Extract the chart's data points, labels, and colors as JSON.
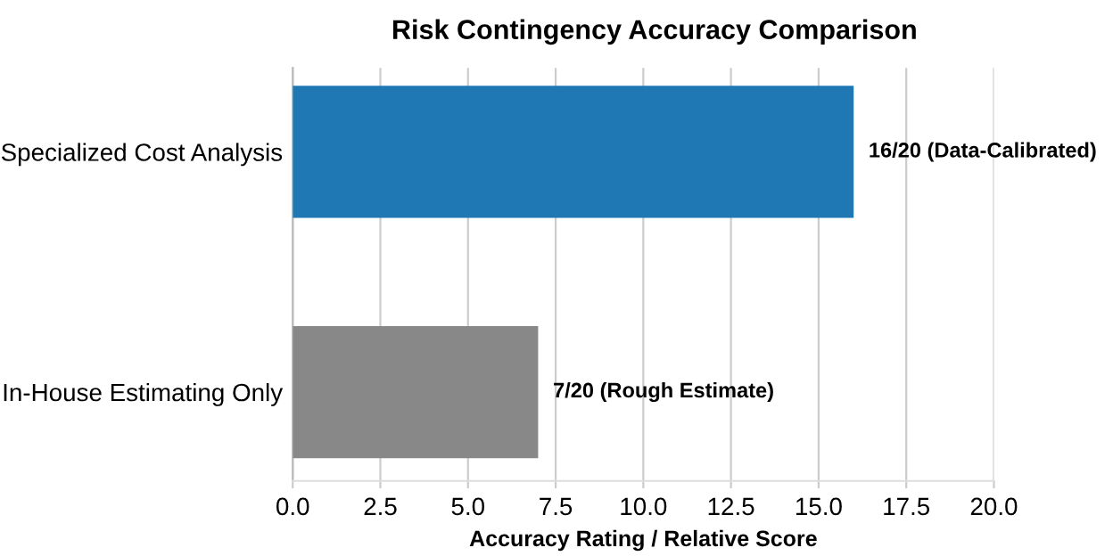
{
  "chart_data": {
    "type": "bar",
    "orientation": "horizontal",
    "title": "Risk Contingency Accuracy Comparison",
    "xlabel": "Accuracy Rating / Relative Score",
    "categories": [
      "Specialized Cost Analysis",
      "In-House Estimating Only"
    ],
    "values": [
      16,
      7
    ],
    "colors": [
      "#1f77b4",
      "#888888"
    ],
    "value_labels": [
      "16/20 (Data-Calibrated)",
      "7/20 (Rough Estimate)"
    ],
    "xlim": [
      0,
      20
    ],
    "xticks": [
      {
        "value": 0,
        "label": "0.0"
      },
      {
        "value": 2.5,
        "label": "2.5"
      },
      {
        "value": 5,
        "label": "5.0"
      },
      {
        "value": 7.5,
        "label": "7.5"
      },
      {
        "value": 10,
        "label": "10.0"
      },
      {
        "value": 12.5,
        "label": "12.5"
      },
      {
        "value": 15,
        "label": "15.0"
      },
      {
        "value": 17.5,
        "label": "17.5"
      },
      {
        "value": 20,
        "label": "20.0"
      }
    ],
    "grid": "x"
  }
}
